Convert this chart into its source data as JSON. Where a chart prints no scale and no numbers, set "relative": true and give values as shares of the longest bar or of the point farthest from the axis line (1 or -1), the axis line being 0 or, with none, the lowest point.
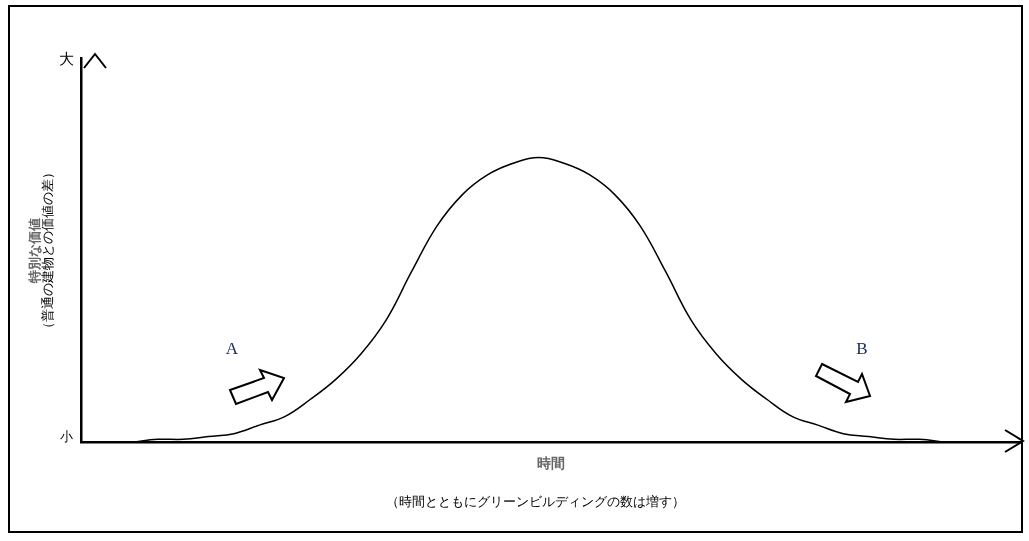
{
  "chart_data": {
    "type": "line",
    "relative": true,
    "xlabel": "時間",
    "ylabel": "特別な価値",
    "categories": [
      null,
      null,
      null,
      null,
      null,
      null,
      null,
      null,
      null,
      null,
      null,
      null,
      null,
      null,
      null,
      null,
      null,
      null,
      null,
      null,
      null,
      null,
      null,
      null,
      null,
      null,
      null,
      null,
      null,
      null,
      null,
      null,
      null,
      null,
      null,
      null,
      null,
      null
    ],
    "series": [
      {
        "color": "#000000",
        "values": [
          null,
          null,
          0,
          0.01,
          0.01,
          0.02,
          0.03,
          0.06,
          0.09,
          0.15,
          0.22,
          0.31,
          0.43,
          0.6,
          0.76,
          0.87,
          0.94,
          0.98,
          1,
          0.98,
          0.94,
          0.87,
          0.76,
          0.6,
          0.43,
          0.31,
          0.22,
          0.15,
          0.09,
          0.06,
          0.03,
          0.02,
          0.01,
          0.01,
          0,
          null,
          null,
          null
        ]
      }
    ],
    "annotations": [
      "大",
      "小",
      "A",
      "B",
      "（時間とともにグリーンビルディングの数は増す）",
      "（普通の建物との価値の差）"
    ],
    "grid": false,
    "legend": false,
    "marker": "none",
    "line_style": "solid"
  }
}
